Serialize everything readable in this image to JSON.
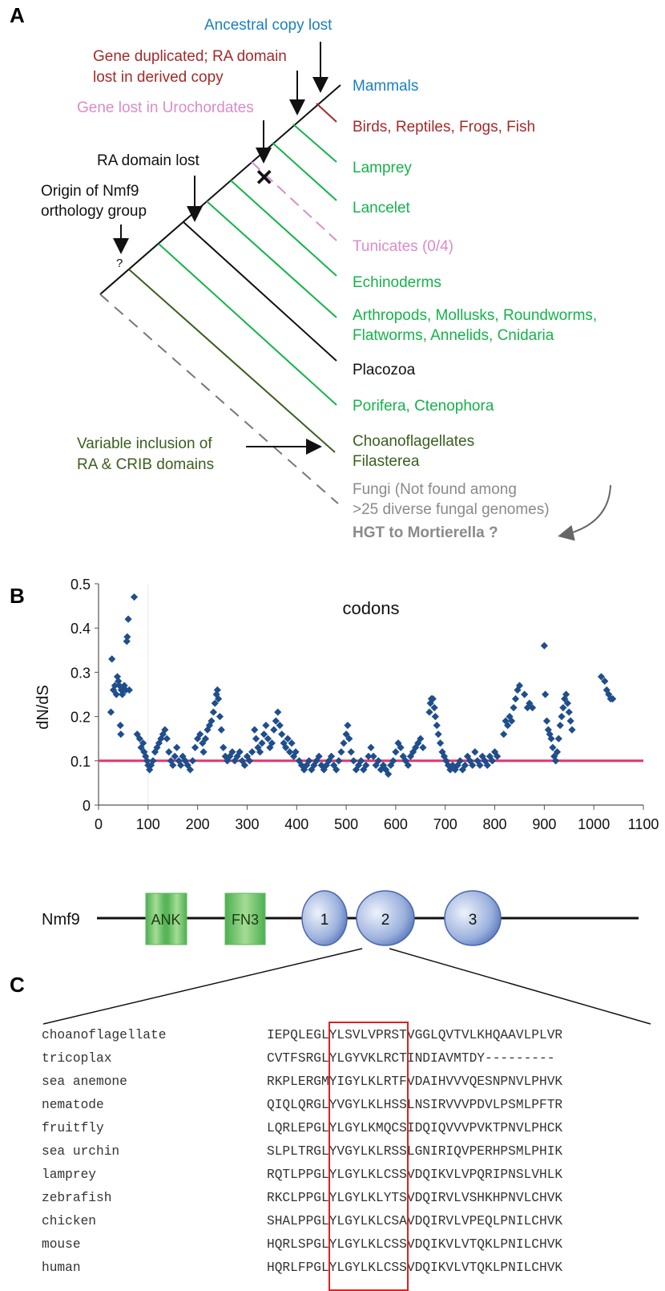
{
  "panelA": {
    "letter": "A",
    "annotations": {
      "ancestral": "Ancestral copy lost",
      "dup1": "Gene duplicated; RA domain",
      "dup2": "lost in derived copy",
      "urochord": "Gene lost in Urochordates",
      "ra_lost": "RA domain lost",
      "origin1": "Origin of Nmf9",
      "origin2": "orthology group",
      "question": "?",
      "variable1": "Variable inclusion of",
      "variable2": "RA & CRIB domains",
      "loss_mark": "✕"
    },
    "taxa": [
      {
        "name": "Mammals",
        "color": "#1a7fc0"
      },
      {
        "name": "Birds, Reptiles, Frogs, Fish",
        "color": "#a52a2a"
      },
      {
        "name": "Lamprey",
        "color": "#14b34a"
      },
      {
        "name": "Lancelet",
        "color": "#14b34a"
      },
      {
        "name": "Tunicates (0/4)",
        "color": "#d98cc9"
      },
      {
        "name": "Echinoderms",
        "color": "#14b34a"
      },
      {
        "name": "Arthropods, Mollusks, Roundworms,",
        "color": "#14b34a"
      },
      {
        "name": "Flatworms, Annelids, Cnidaria",
        "color": "#14b34a"
      },
      {
        "name": "Placozoa",
        "color": "#111111"
      },
      {
        "name": "Porifera, Ctenophora",
        "color": "#14b34a"
      },
      {
        "name": "Choanoflagellates",
        "color": "#3a5f1e"
      },
      {
        "name": "Filasterea",
        "color": "#3a5f1e"
      },
      {
        "name": "Fungi (Not found among",
        "color": "#8a8a8a"
      },
      {
        "name": ">25 diverse fungal genomes)",
        "color": "#8a8a8a"
      },
      {
        "name": "HGT to Mortierella ?",
        "color": "#8a8a8a"
      }
    ]
  },
  "panelB": {
    "letter": "B",
    "gene_label": "Nmf9",
    "domains": {
      "ank": "ANK",
      "fn3": "FN3",
      "r1": "1",
      "r2": "2",
      "r3": "3"
    },
    "reference_line_color": "#e8336b",
    "point_color": "#1f4e8c"
  },
  "chart_data": {
    "type": "scatter",
    "title": "codons",
    "xlabel": "",
    "ylabel": "dN/dS",
    "xlim": [
      0,
      1100
    ],
    "ylim": [
      0,
      0.5
    ],
    "xticks": [
      "0",
      "100",
      "200",
      "300",
      "400",
      "500",
      "600",
      "700",
      "800",
      "900",
      "1000",
      "1100"
    ],
    "yticks": [
      "0",
      "0.1",
      "0.2",
      "0.3",
      "0.4",
      "0.5"
    ],
    "reference_line_y": 0.1,
    "series": [
      {
        "points": [
          [
            25,
            0.21
          ],
          [
            27,
            0.33
          ],
          [
            30,
            0.26
          ],
          [
            33,
            0.27
          ],
          [
            36,
            0.25
          ],
          [
            38,
            0.29
          ],
          [
            40,
            0.28
          ],
          [
            42,
            0.27
          ],
          [
            44,
            0.18
          ],
          [
            45,
            0.16
          ],
          [
            46,
            0.26
          ],
          [
            48,
            0.25
          ],
          [
            50,
            0.26
          ],
          [
            52,
            0.27
          ],
          [
            55,
            0.26
          ],
          [
            57,
            0.37
          ],
          [
            58,
            0.38
          ],
          [
            60,
            0.42
          ],
          [
            62,
            0.26
          ],
          [
            72,
            0.47
          ],
          [
            78,
            0.16
          ],
          [
            83,
            0.15
          ],
          [
            86,
            0.13
          ],
          [
            90,
            0.14
          ],
          [
            92,
            0.12
          ],
          [
            95,
            0.11
          ],
          [
            98,
            0.1
          ],
          [
            100,
            0.09
          ],
          [
            103,
            0.08
          ],
          [
            106,
            0.09
          ],
          [
            110,
            0.1
          ],
          [
            114,
            0.12
          ],
          [
            118,
            0.13
          ],
          [
            122,
            0.14
          ],
          [
            126,
            0.15
          ],
          [
            130,
            0.16
          ],
          [
            134,
            0.17
          ],
          [
            138,
            0.15
          ],
          [
            142,
            0.12
          ],
          [
            146,
            0.1
          ],
          [
            150,
            0.09
          ],
          [
            154,
            0.11
          ],
          [
            158,
            0.13
          ],
          [
            162,
            0.1
          ],
          [
            166,
            0.09
          ],
          [
            170,
            0.11
          ],
          [
            175,
            0.1
          ],
          [
            180,
            0.09
          ],
          [
            185,
            0.08
          ],
          [
            190,
            0.1
          ],
          [
            195,
            0.13
          ],
          [
            200,
            0.15
          ],
          [
            205,
            0.16
          ],
          [
            210,
            0.14
          ],
          [
            212,
            0.12
          ],
          [
            216,
            0.15
          ],
          [
            220,
            0.17
          ],
          [
            224,
            0.18
          ],
          [
            228,
            0.19
          ],
          [
            232,
            0.21
          ],
          [
            235,
            0.23
          ],
          [
            238,
            0.25
          ],
          [
            240,
            0.26
          ],
          [
            242,
            0.24
          ],
          [
            245,
            0.2
          ],
          [
            248,
            0.17
          ],
          [
            252,
            0.13
          ],
          [
            256,
            0.11
          ],
          [
            260,
            0.1
          ],
          [
            265,
            0.11
          ],
          [
            270,
            0.12
          ],
          [
            275,
            0.1
          ],
          [
            280,
            0.11
          ],
          [
            285,
            0.12
          ],
          [
            290,
            0.1
          ],
          [
            295,
            0.09
          ],
          [
            300,
            0.11
          ],
          [
            305,
            0.1
          ],
          [
            310,
            0.12
          ],
          [
            315,
            0.17
          ],
          [
            318,
            0.15
          ],
          [
            322,
            0.13
          ],
          [
            326,
            0.12
          ],
          [
            330,
            0.14
          ],
          [
            334,
            0.16
          ],
          [
            338,
            0.18
          ],
          [
            342,
            0.15
          ],
          [
            346,
            0.13
          ],
          [
            350,
            0.14
          ],
          [
            354,
            0.17
          ],
          [
            358,
            0.19
          ],
          [
            362,
            0.21
          ],
          [
            366,
            0.18
          ],
          [
            370,
            0.16
          ],
          [
            374,
            0.14
          ],
          [
            378,
            0.13
          ],
          [
            382,
            0.15
          ],
          [
            386,
            0.12
          ],
          [
            390,
            0.14
          ],
          [
            394,
            0.11
          ],
          [
            398,
            0.12
          ],
          [
            405,
            0.1
          ],
          [
            410,
            0.09
          ],
          [
            415,
            0.08
          ],
          [
            420,
            0.09
          ],
          [
            425,
            0.1
          ],
          [
            430,
            0.08
          ],
          [
            435,
            0.09
          ],
          [
            440,
            0.1
          ],
          [
            445,
            0.11
          ],
          [
            450,
            0.09
          ],
          [
            455,
            0.08
          ],
          [
            460,
            0.09
          ],
          [
            465,
            0.1
          ],
          [
            470,
            0.11
          ],
          [
            475,
            0.09
          ],
          [
            480,
            0.08
          ],
          [
            485,
            0.1
          ],
          [
            490,
            0.12
          ],
          [
            495,
            0.14
          ],
          [
            500,
            0.16
          ],
          [
            503,
            0.18
          ],
          [
            506,
            0.15
          ],
          [
            510,
            0.12
          ],
          [
            515,
            0.1
          ],
          [
            520,
            0.08
          ],
          [
            525,
            0.09
          ],
          [
            530,
            0.1
          ],
          [
            535,
            0.08
          ],
          [
            540,
            0.09
          ],
          [
            545,
            0.11
          ],
          [
            550,
            0.13
          ],
          [
            555,
            0.11
          ],
          [
            560,
            0.09
          ],
          [
            565,
            0.1
          ],
          [
            570,
            0.08
          ],
          [
            575,
            0.09
          ],
          [
            580,
            0.08
          ],
          [
            585,
            0.07
          ],
          [
            590,
            0.09
          ],
          [
            595,
            0.1
          ],
          [
            600,
            0.12
          ],
          [
            605,
            0.14
          ],
          [
            610,
            0.13
          ],
          [
            615,
            0.11
          ],
          [
            620,
            0.1
          ],
          [
            625,
            0.09
          ],
          [
            630,
            0.11
          ],
          [
            635,
            0.12
          ],
          [
            640,
            0.13
          ],
          [
            645,
            0.14
          ],
          [
            650,
            0.15
          ],
          [
            655,
            0.13
          ],
          [
            668,
            0.21
          ],
          [
            670,
            0.23
          ],
          [
            672,
            0.24
          ],
          [
            675,
            0.24
          ],
          [
            678,
            0.22
          ],
          [
            680,
            0.2
          ],
          [
            683,
            0.18
          ],
          [
            686,
            0.16
          ],
          [
            690,
            0.14
          ],
          [
            694,
            0.12
          ],
          [
            698,
            0.11
          ],
          [
            702,
            0.1
          ],
          [
            706,
            0.09
          ],
          [
            710,
            0.08
          ],
          [
            715,
            0.09
          ],
          [
            720,
            0.08
          ],
          [
            725,
            0.09
          ],
          [
            730,
            0.1
          ],
          [
            735,
            0.08
          ],
          [
            740,
            0.09
          ],
          [
            745,
            0.11
          ],
          [
            750,
            0.1
          ],
          [
            755,
            0.09
          ],
          [
            760,
            0.12
          ],
          [
            765,
            0.1
          ],
          [
            770,
            0.09
          ],
          [
            775,
            0.11
          ],
          [
            780,
            0.1
          ],
          [
            785,
            0.09
          ],
          [
            790,
            0.11
          ],
          [
            795,
            0.1
          ],
          [
            800,
            0.12
          ],
          [
            805,
            0.11
          ],
          [
            818,
            0.16
          ],
          [
            822,
            0.19
          ],
          [
            826,
            0.18
          ],
          [
            830,
            0.2
          ],
          [
            834,
            0.19
          ],
          [
            838,
            0.22
          ],
          [
            842,
            0.24
          ],
          [
            846,
            0.26
          ],
          [
            850,
            0.27
          ],
          [
            860,
            0.25
          ],
          [
            866,
            0.22
          ],
          [
            870,
            0.23
          ],
          [
            876,
            0.22
          ],
          [
            900,
            0.36
          ],
          [
            902,
            0.25
          ],
          [
            905,
            0.19
          ],
          [
            908,
            0.17
          ],
          [
            911,
            0.16
          ],
          [
            914,
            0.15
          ],
          [
            917,
            0.13
          ],
          [
            920,
            0.11
          ],
          [
            923,
            0.1
          ],
          [
            926,
            0.12
          ],
          [
            929,
            0.15
          ],
          [
            932,
            0.18
          ],
          [
            935,
            0.2
          ],
          [
            938,
            0.22
          ],
          [
            941,
            0.24
          ],
          [
            944,
            0.25
          ],
          [
            947,
            0.23
          ],
          [
            950,
            0.21
          ],
          [
            953,
            0.19
          ],
          [
            956,
            0.17
          ],
          [
            1015,
            0.29
          ],
          [
            1022,
            0.28
          ],
          [
            1026,
            0.26
          ],
          [
            1030,
            0.25
          ],
          [
            1034,
            0.24
          ],
          [
            1038,
            0.24
          ]
        ]
      }
    ]
  },
  "panelC": {
    "letter": "C",
    "rows": [
      {
        "species": "choanoflagellate",
        "seq": "IEPQLEGLYLSVLVPRSTVGGLQVTVLKHQAAVLPLVR"
      },
      {
        "species": "tricoplax",
        "seq": "CVTFSRGLYLGYVKLRCTINDIAVMTDY---------"
      },
      {
        "species": "sea anemone",
        "seq": "RKPLERGMYIGYLKLRTFVDAIHVVVQESNPNVLPHVK"
      },
      {
        "species": "nematode",
        "seq": "QIQLQRGLYVGYLKLHSSLNSIRVVVPDVLPSMLPFTR"
      },
      {
        "species": "fruitfly",
        "seq": "LQRLEPGLYLGYLKMQCSIDQIQVVVPVKTPNVLPHCK"
      },
      {
        "species": "sea urchin",
        "seq": "SLPLTRGLYVGYLKLRSSLGNIRIQVPERHPSMLPHIK"
      },
      {
        "species": "lamprey",
        "seq": "RQTLPPGLYLGYLKLCSSVDQIKVLVPQRIPNSLVHLK"
      },
      {
        "species": "zebrafish",
        "seq": "RKCLPPGLYLGYLKLYTSVDQIRVLVSHKHPNVLCHVK"
      },
      {
        "species": "chicken",
        "seq": "SHALPPGLYLGYLKLCSAVDQIRVLVPEQLPNILCHVK"
      },
      {
        "species": "mouse",
        "seq": "HQRLSPGLYLGYLKLCSSVDQIKVLVTQKLPNILCHVK"
      },
      {
        "species": "human",
        "seq": "HQRLFPGLYLGYLKLCSSVDQIKVLVTQKLPNILCHVK"
      }
    ]
  }
}
